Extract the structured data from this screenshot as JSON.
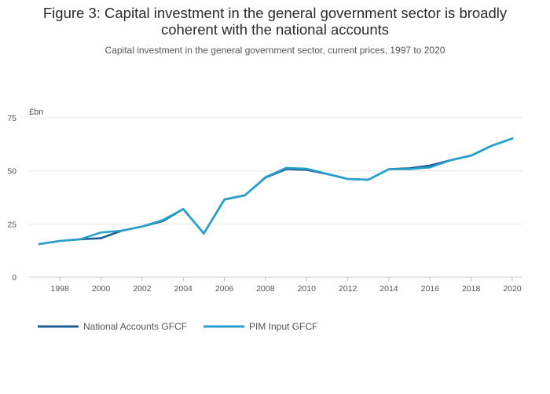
{
  "title_line1": "Figure 3: Capital investment in the general government sector is broadly",
  "title_line2": "coherent with the national accounts",
  "subtitle": "Capital investment in the general government sector, current prices, 1997 to 2020",
  "chart_data": {
    "type": "line",
    "title": "Figure 3: Capital investment in the general government sector is broadly coherent with the national accounts",
    "subtitle": "Capital investment in the general government sector, current prices, 1997 to 2020",
    "xlabel": "",
    "ylabel": "£bn",
    "xlim": [
      1997,
      2020
    ],
    "ylim": [
      0,
      75
    ],
    "yticks": [
      0,
      25,
      50,
      75
    ],
    "ytick_labels": [
      "0",
      "25",
      "50",
      "75"
    ],
    "xticks": [
      1998,
      2000,
      2002,
      2004,
      2006,
      2008,
      2010,
      2012,
      2014,
      2016,
      2018,
      2020
    ],
    "xtick_labels": [
      "1998",
      "2000",
      "2002",
      "2004",
      "2006",
      "2008",
      "2010",
      "2012",
      "2014",
      "2016",
      "2018",
      "2020"
    ],
    "grid": true,
    "legend_position": "bottom-left",
    "x": [
      1997,
      1998,
      1999,
      2000,
      2001,
      2002,
      2003,
      2004,
      2005,
      2006,
      2007,
      2008,
      2009,
      2010,
      2011,
      2012,
      2013,
      2014,
      2015,
      2016,
      2017,
      2018,
      2019,
      2020
    ],
    "series": [
      {
        "name": "National Accounts GFCF",
        "color": "#206095",
        "values": [
          15.5,
          17.0,
          17.8,
          18.3,
          21.8,
          23.8,
          26.3,
          32.0,
          20.5,
          36.5,
          38.5,
          46.8,
          50.8,
          50.5,
          48.5,
          46.2,
          45.8,
          50.8,
          51.2,
          52.5,
          55.0,
          57.2,
          61.8,
          65.2
        ]
      },
      {
        "name": "PIM Input GFCF",
        "color": "#27A0CC",
        "values": [
          15.5,
          17.0,
          17.8,
          21.0,
          21.8,
          23.8,
          26.8,
          32.0,
          20.5,
          36.5,
          38.5,
          47.0,
          51.4,
          51.0,
          48.6,
          46.2,
          45.8,
          50.8,
          50.8,
          51.6,
          55.0,
          57.2,
          61.8,
          65.2
        ]
      }
    ]
  }
}
